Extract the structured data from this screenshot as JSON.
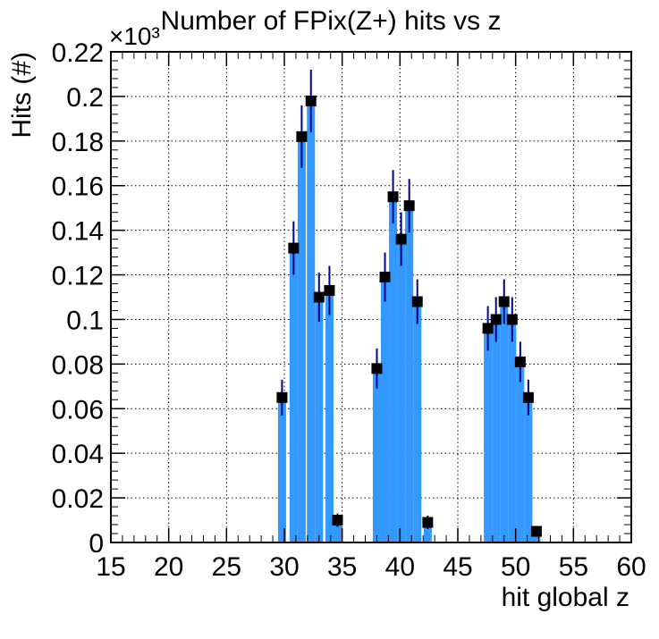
{
  "chart_data": {
    "type": "bar",
    "title": "Number of FPix(Z+) hits vs z",
    "xlabel": "hit global z",
    "ylabel": "Hits (#)",
    "y_multiplier_label": "×10³",
    "xlim": [
      15,
      60
    ],
    "ylim": [
      0,
      0.22
    ],
    "x_ticks": [
      "15",
      "20",
      "25",
      "30",
      "35",
      "40",
      "45",
      "50",
      "55",
      "60"
    ],
    "y_ticks": [
      "0",
      "0.02",
      "0.04",
      "0.06",
      "0.08",
      "0.1",
      "0.12",
      "0.14",
      "0.16",
      "0.18",
      "0.2",
      "0.22"
    ],
    "grid": true,
    "colors": {
      "fill": "#3399ff",
      "marker": "#000000",
      "error_bar": "#00008b"
    },
    "series": [
      {
        "x": [
          29.8,
          30.8,
          31.5,
          32.3,
          33.0,
          33.9,
          34.6,
          38.0,
          38.7,
          39.4,
          40.1,
          40.8,
          41.5,
          42.4,
          47.6,
          48.3,
          49.0,
          49.7,
          50.4,
          51.1,
          51.8
        ],
        "values": [
          0.065,
          0.132,
          0.182,
          0.198,
          0.11,
          0.113,
          0.01,
          0.078,
          0.119,
          0.155,
          0.136,
          0.151,
          0.108,
          0.009,
          0.096,
          0.1,
          0.108,
          0.1,
          0.081,
          0.065,
          0.005
        ],
        "errors": [
          0.008,
          0.012,
          0.014,
          0.014,
          0.011,
          0.011,
          0.003,
          0.009,
          0.011,
          0.012,
          0.012,
          0.012,
          0.01,
          0.003,
          0.01,
          0.01,
          0.01,
          0.01,
          0.009,
          0.008,
          0.002
        ]
      }
    ]
  }
}
